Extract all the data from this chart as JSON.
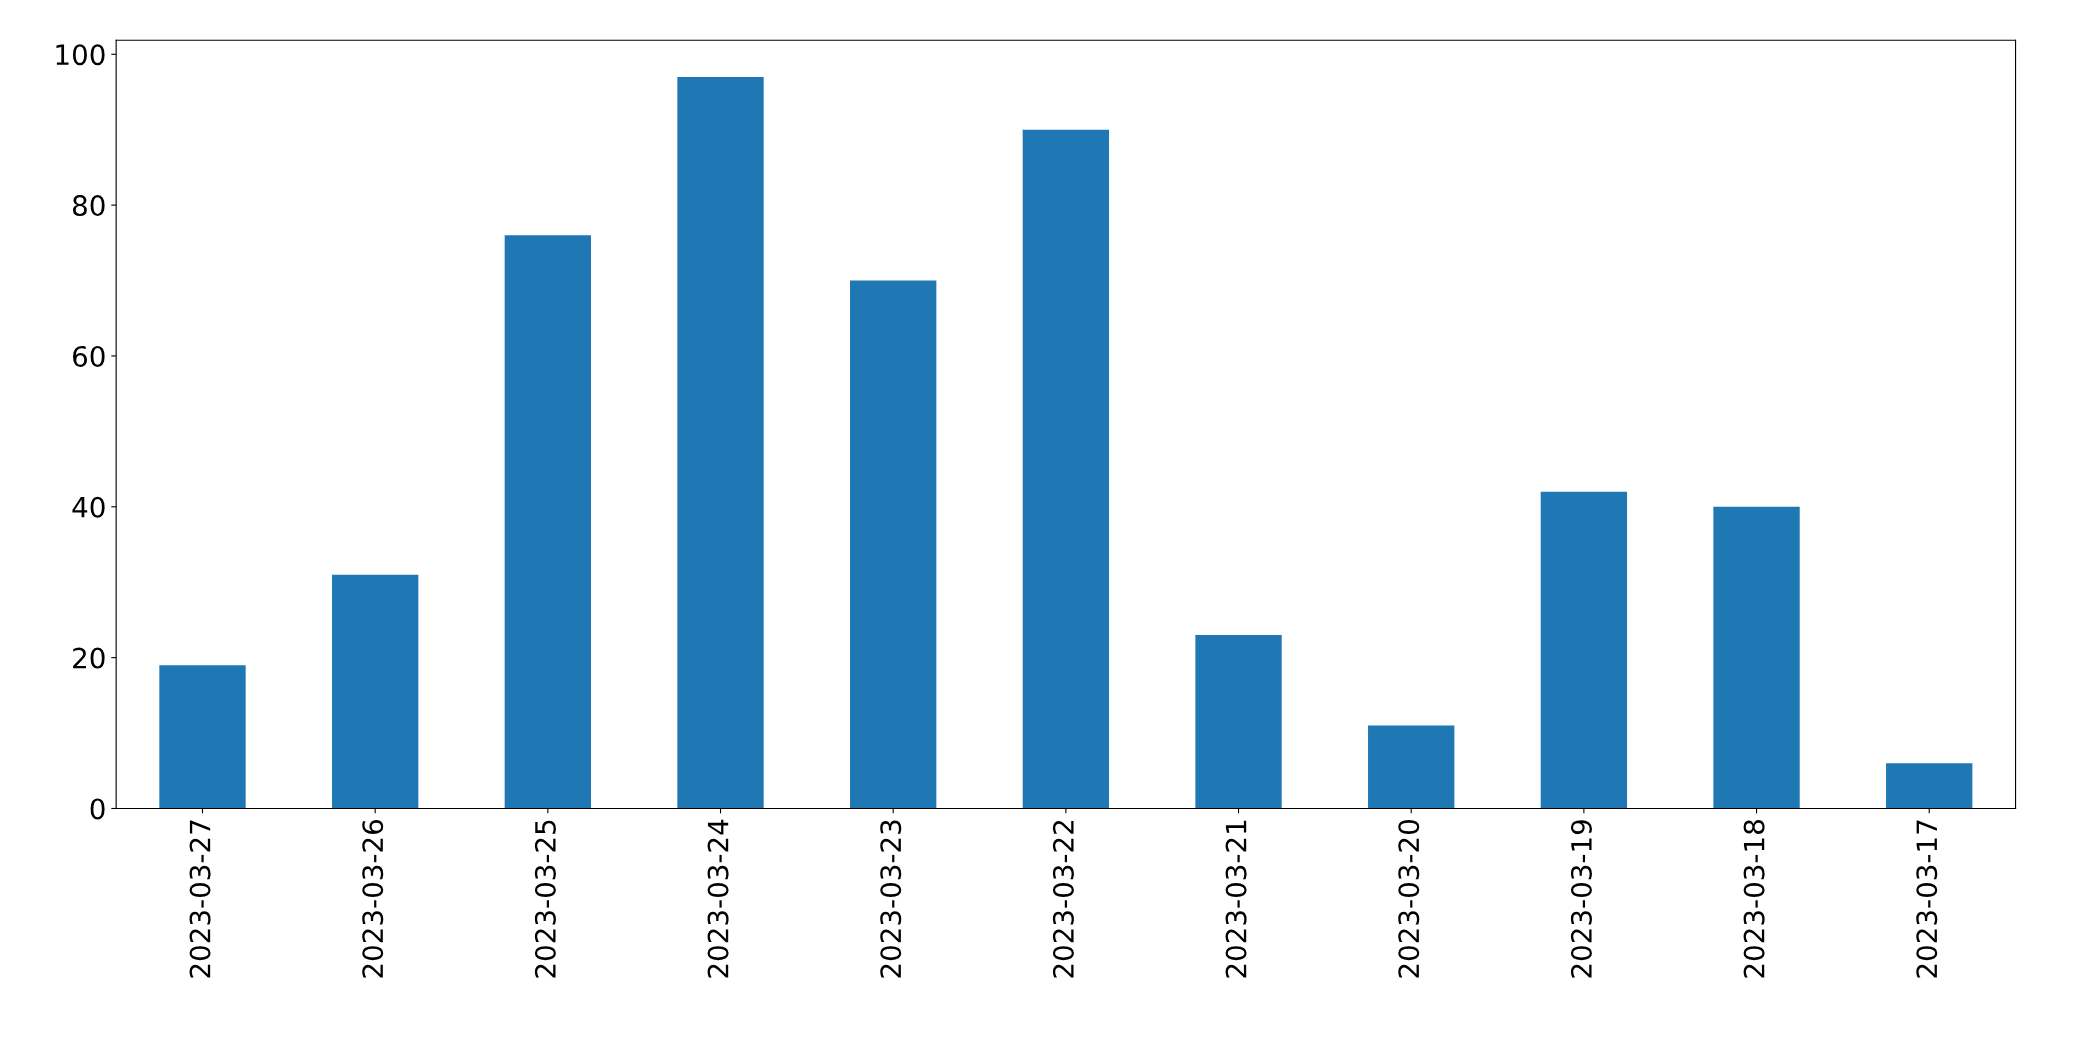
{
  "chart_data": {
    "type": "bar",
    "categories": [
      "2023-03-27",
      "2023-03-26",
      "2023-03-25",
      "2023-03-24",
      "2023-03-23",
      "2023-03-22",
      "2023-03-21",
      "2023-03-20",
      "2023-03-19",
      "2023-03-18",
      "2023-03-17"
    ],
    "values": [
      19,
      31,
      76,
      97,
      70,
      90,
      23,
      11,
      42,
      40,
      6
    ],
    "color": "#1f77b4",
    "ylim": [
      0,
      101.85
    ],
    "yticks": [
      0,
      20,
      40,
      60,
      80,
      100
    ],
    "grid": false,
    "legend": false
  }
}
